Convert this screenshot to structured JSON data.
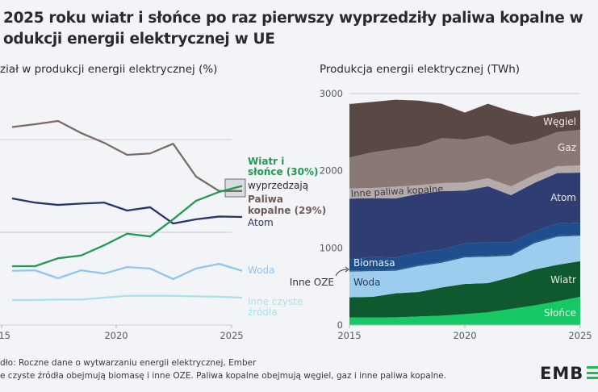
{
  "title_line1": "2025 roku wiatr i słońce po raz pierwszy wyprzedziły paliwa kopalne w",
  "title_line2": "odukcji energii elektrycznej w UE",
  "footer_source": "dło: Roczne dane o wytwarzaniu energii elektrycznej, Ember",
  "footer_note": "e czyste źródła obejmują biomasę i inne OZE. Paliwa kopalne obejmują węgiel, gaz i inne paliwa kopalne.",
  "logo": "EMBER",
  "logo_visible": "EMB",
  "chart_data": [
    {
      "type": "line",
      "title": "ział w produkcji energii elektrycznej (%)",
      "x": [
        2015,
        2016,
        2017,
        2018,
        2019,
        2020,
        2021,
        2022,
        2023,
        2024,
        2025
      ],
      "x_tick_labels": [
        "015",
        "2020",
        "2025"
      ],
      "ylim": [
        0,
        45
      ],
      "grid": true,
      "annotation": "wyprzedzają",
      "series": [
        {
          "name": "Paliwa kopalne (29%)",
          "label_lines": [
            "Paliwa",
            "kopalne (29%)"
          ],
          "color": "#7d6b66",
          "values": [
            42.7,
            43.3,
            44.0,
            41.4,
            39.3,
            36.7,
            37.0,
            39.1,
            32.0,
            28.9,
            28.9
          ]
        },
        {
          "name": "Wiatr i słońce (30%)",
          "label_lines": [
            "Wiatr i",
            "słońce (30%)"
          ],
          "color": "#1f9a4f",
          "values": [
            12.7,
            12.7,
            14.4,
            15.0,
            17.2,
            19.7,
            19.1,
            22.8,
            26.8,
            28.7,
            30.0
          ]
        },
        {
          "name": "Atom",
          "label_lines": [
            "Atom"
          ],
          "color": "#27356b",
          "values": [
            27.3,
            26.4,
            25.9,
            26.2,
            26.4,
            24.7,
            25.4,
            21.9,
            22.8,
            23.4,
            23.3
          ]
        },
        {
          "name": "Woda",
          "label_lines": [
            "Woda"
          ],
          "color": "#8fc6ee",
          "values": [
            11.7,
            11.8,
            10.1,
            11.8,
            11.1,
            12.5,
            12.2,
            9.9,
            12.2,
            13.2,
            11.7
          ]
        },
        {
          "name": "Inne czyste źródła",
          "label_lines": [
            "Inne czyste",
            "źródła"
          ],
          "color": "#a8e2e8",
          "values": [
            5.4,
            5.4,
            5.5,
            5.5,
            5.9,
            6.3,
            6.3,
            6.3,
            6.2,
            6.1,
            5.9
          ]
        }
      ]
    },
    {
      "type": "area",
      "stacked": true,
      "title": "Produkcja energii elektrycznej (TWh)",
      "x": [
        2015,
        2016,
        2017,
        2018,
        2019,
        2020,
        2021,
        2022,
        2023,
        2024,
        2025
      ],
      "x_tick_labels": [
        "2015",
        "2020",
        "2025"
      ],
      "y_tick_labels": [
        "0",
        "1000",
        "2000",
        "3000"
      ],
      "ylim": [
        0,
        3000
      ],
      "grid": true,
      "series": [
        {
          "name": "Słońce",
          "color": "#17c964",
          "values": [
            98,
            98,
            101,
            111,
            122,
            143,
            164,
            209,
            254,
            307,
            366
          ]
        },
        {
          "name": "Wiatr",
          "color": "#0e5a2e",
          "values": [
            261,
            268,
            310,
            318,
            366,
            390,
            380,
            411,
            464,
            473,
            463
          ]
        },
        {
          "name": "Woda",
          "color": "#9ccdee",
          "values": [
            333,
            333,
            292,
            336,
            319,
            344,
            340,
            278,
            340,
            365,
            327
          ]
        },
        {
          "name": "Inne OZE",
          "color": "#2a5a8a",
          "values": [
            15,
            15,
            15,
            15,
            15,
            15,
            15,
            15,
            15,
            15,
            15
          ]
        },
        {
          "name": "Biomasa",
          "color": "#1e4e8c",
          "values": [
            147,
            168,
            157,
            161,
            157,
            167,
            174,
            160,
            140,
            157,
            157
          ]
        },
        {
          "name": "Atom",
          "color": "#2f3d72",
          "values": [
            784,
            763,
            766,
            759,
            756,
            683,
            725,
            610,
            627,
            652,
            648
          ]
        },
        {
          "name": "Inne paliwa kopalne",
          "color": "#b6abab",
          "values": [
            132,
            132,
            153,
            112,
            105,
            105,
            104,
            115,
            104,
            87,
            94
          ]
        },
        {
          "name": "Gaz",
          "color": "#8a7874",
          "values": [
            401,
            463,
            488,
            509,
            582,
            557,
            554,
            536,
            446,
            446,
            460
          ]
        },
        {
          "name": "Węgiel",
          "color": "#5a4845",
          "values": [
            693,
            652,
            638,
            588,
            446,
            349,
            412,
            436,
            310,
            254,
            257
          ]
        }
      ]
    }
  ]
}
